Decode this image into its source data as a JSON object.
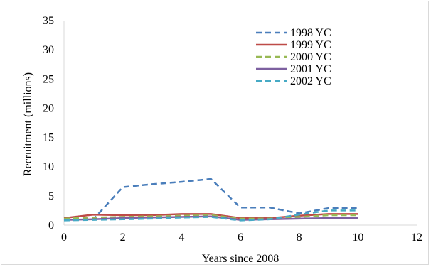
{
  "chart_data": {
    "type": "line",
    "title": "",
    "xlabel": "Years since 2008",
    "ylabel": "Recruitment (millions)",
    "xlim": [
      0,
      12
    ],
    "ylim": [
      0,
      35
    ],
    "x_ticks": [
      0,
      2,
      4,
      6,
      8,
      10,
      12
    ],
    "y_ticks": [
      0,
      5,
      10,
      15,
      20,
      25,
      30,
      35
    ],
    "grid": false,
    "legend_position": "top-right",
    "x": [
      0,
      1,
      2,
      3,
      4,
      5,
      6,
      7,
      8,
      9,
      10
    ],
    "series": [
      {
        "name": "1998 YC",
        "color": "#4a7ebb",
        "dash": "dashed",
        "values": [
          1.0,
          1.0,
          6.5,
          7.0,
          7.4,
          7.9,
          3.0,
          3.0,
          2.0,
          2.9,
          2.9
        ]
      },
      {
        "name": "1999 YC",
        "color": "#be4b48",
        "dash": "solid",
        "values": [
          1.2,
          1.8,
          1.7,
          1.7,
          1.9,
          1.9,
          1.2,
          1.2,
          1.6,
          1.9,
          1.9
        ]
      },
      {
        "name": "2000 YC",
        "color": "#98b954",
        "dash": "dashed",
        "values": [
          1.1,
          1.3,
          1.4,
          1.5,
          1.6,
          1.7,
          1.1,
          1.1,
          1.4,
          1.7,
          1.7
        ]
      },
      {
        "name": "2001 YC",
        "color": "#7d60a0",
        "dash": "solid",
        "values": [
          0.9,
          1.0,
          1.2,
          1.3,
          1.4,
          1.5,
          0.9,
          1.0,
          1.1,
          1.2,
          1.2
        ]
      },
      {
        "name": "2002 YC",
        "color": "#46aac5",
        "dash": "dashed",
        "values": [
          0.8,
          0.9,
          1.0,
          1.1,
          1.3,
          1.4,
          0.8,
          1.0,
          1.8,
          2.5,
          2.5
        ]
      }
    ]
  }
}
